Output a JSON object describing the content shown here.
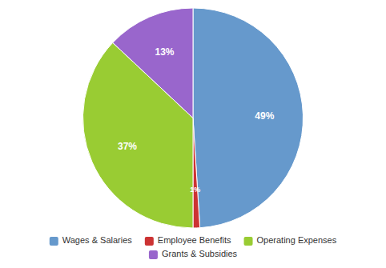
{
  "chart_data": {
    "type": "pie",
    "categories": [
      "Wages & Salaries",
      "Employee Benefits",
      "Operating Expenses",
      "Grants & Subsidies"
    ],
    "values": [
      49,
      1,
      37,
      13
    ],
    "value_labels": [
      "49%",
      "1%",
      "37%",
      "13%"
    ],
    "colors": [
      "#6699CC",
      "#CC3333",
      "#99CC33",
      "#9966CC"
    ],
    "data_labels": true,
    "legend": "bottom"
  }
}
